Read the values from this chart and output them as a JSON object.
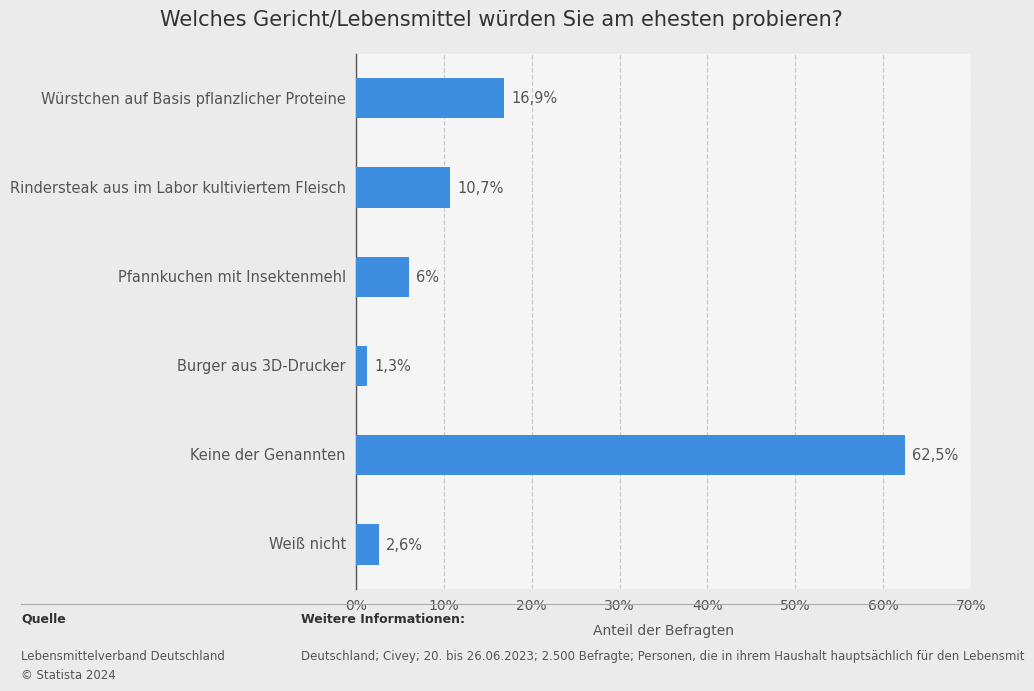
{
  "title": "Welches Gericht/Lebensmittel würden Sie am ehesten probieren?",
  "categories": [
    "Würstchen auf Basis pflanzlicher Proteine",
    "Rindersteak aus im Labor kultiviertem Fleisch",
    "Pfannkuchen mit Insektenmehl",
    "Burger aus 3D-Drucker",
    "Keine der Genannten",
    "Weiß nicht"
  ],
  "values": [
    16.9,
    10.7,
    6.0,
    1.3,
    62.5,
    2.6
  ],
  "value_labels": [
    "16,9%",
    "10,7%",
    "6%",
    "1,3%",
    "62,5%",
    "2,6%"
  ],
  "bar_color": "#3d8de0",
  "background_color": "#ebebeb",
  "plot_background_color": "#f5f5f5",
  "xlabel": "Anteil der Befragten",
  "xlim": [
    0,
    70
  ],
  "xtick_values": [
    0,
    10,
    20,
    30,
    40,
    50,
    60,
    70
  ],
  "xtick_labels": [
    "0%",
    "10%",
    "20%",
    "30%",
    "40%",
    "50%",
    "60%",
    "70%"
  ],
  "title_fontsize": 15,
  "label_fontsize": 10.5,
  "value_fontsize": 10.5,
  "xlabel_fontsize": 10,
  "source_label": "Quelle",
  "source_text": "Lebensmittelverband Deutschland\n© Statista 2024",
  "info_label": "Weitere Informationen:",
  "info_text": "Deutschland; Civey; 20. bis 26.06.2023; 2.500 Befragte; Personen, die in ihrem Haushalt hauptsächlich für den Lebensmit"
}
